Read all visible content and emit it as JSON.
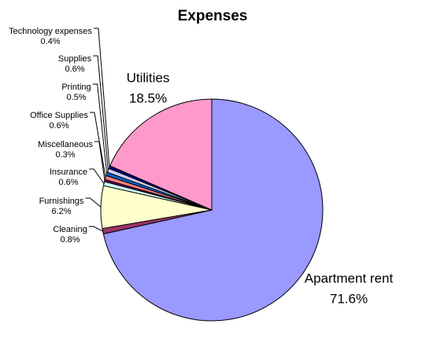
{
  "chart_data": {
    "type": "pie",
    "title": "Expenses",
    "categories": [
      "Apartment rent",
      "Cleaning",
      "Furnishings",
      "Insurance",
      "Miscellaneous",
      "Office Supplies",
      "Printing",
      "Supplies",
      "Technology expenses",
      "Utilities"
    ],
    "values": [
      71.6,
      0.8,
      6.2,
      0.6,
      0.3,
      0.6,
      0.5,
      0.6,
      0.4,
      18.5
    ],
    "value_labels": [
      "71.6%",
      "0.8%",
      "6.2%",
      "0.6%",
      "0.3%",
      "0.6%",
      "0.5%",
      "0.6%",
      "0.4%",
      "18.5%"
    ],
    "colors": [
      "#9999ff",
      "#993366",
      "#ffffcc",
      "#ccffff",
      "#660066",
      "#ff8080",
      "#0066cc",
      "#ccccff",
      "#000080",
      "#ff99cc"
    ]
  }
}
